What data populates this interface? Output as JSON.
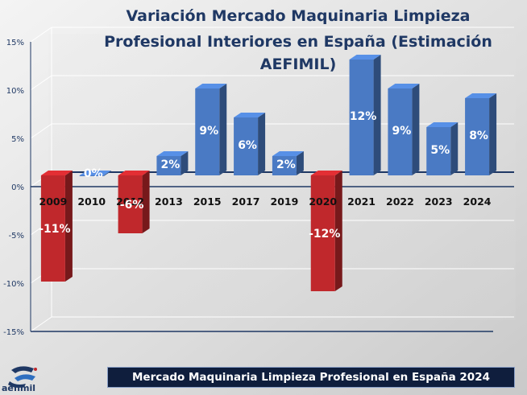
{
  "title_line1": "Variación Mercado Maquinaria Limpieza",
  "title_line2": "Profesional Interiores en España (Estimación AEFIMIL)",
  "footer": "Mercado Maquinaria Limpieza Profesional en España 2024",
  "logo_text": "aefimil",
  "colors": {
    "positive": "#4a7ac4",
    "negative": "#c0282c",
    "title": "#1f3864",
    "banner": "#0f1e3d"
  },
  "chart_data": {
    "type": "bar",
    "categories": [
      "2009",
      "2010",
      "2012",
      "2013",
      "2015",
      "2017",
      "2019",
      "2020",
      "2021",
      "2022",
      "2023",
      "2024"
    ],
    "values": [
      -11,
      0,
      -6,
      2,
      9,
      6,
      2,
      -12,
      12,
      9,
      5,
      8
    ],
    "data_labels": [
      "-11%",
      "0%",
      "-6%",
      "2%",
      "9%",
      "6%",
      "2%",
      "-12%",
      "12%",
      "9%",
      "5%",
      "8%"
    ],
    "y_ticks": [
      "15%",
      "10%",
      "5%",
      "0%",
      "-5%",
      "-10%",
      "-15%"
    ],
    "y_tick_values": [
      15,
      10,
      5,
      0,
      -5,
      -10,
      -15
    ],
    "ylim": [
      -15,
      15
    ],
    "title": "Variación Mercado Maquinaria Limpieza Profesional Interiores en España (Estimación AEFIMIL)",
    "xlabel": "",
    "ylabel": "",
    "grid": true
  }
}
